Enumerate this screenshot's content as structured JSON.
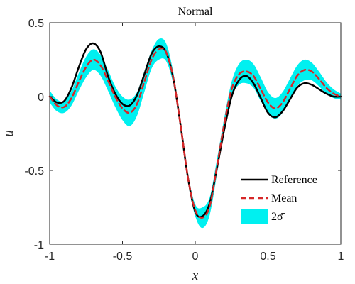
{
  "chart_data": {
    "type": "line",
    "title": "Normal",
    "xlabel": "x",
    "ylabel": "u",
    "xlim": [
      -1,
      1
    ],
    "ylim": [
      -1,
      0.5
    ],
    "xticks": [
      -1,
      -0.5,
      0,
      0.5,
      1
    ],
    "xtick_labels": [
      "-1",
      "-0.5",
      "0",
      "0.5",
      "1"
    ],
    "yticks": [
      -1,
      -0.5,
      0,
      0.5
    ],
    "ytick_labels": [
      "-1",
      "-0.5",
      "0",
      "0.5"
    ],
    "grid": false,
    "legend_position": "bottom-right",
    "x": [
      -1.0,
      -0.95,
      -0.9,
      -0.85,
      -0.8,
      -0.75,
      -0.7,
      -0.65,
      -0.6,
      -0.55,
      -0.5,
      -0.45,
      -0.4,
      -0.35,
      -0.3,
      -0.25,
      -0.2,
      -0.15,
      -0.1,
      -0.05,
      0.0,
      0.05,
      0.1,
      0.15,
      0.2,
      0.25,
      0.3,
      0.35,
      0.4,
      0.45,
      0.5,
      0.55,
      0.6,
      0.65,
      0.7,
      0.75,
      0.8,
      0.85,
      0.9,
      0.95,
      1.0
    ],
    "series": [
      {
        "name": "Reference",
        "color": "#000000",
        "style": "solid",
        "values": [
          0.0,
          -0.04,
          -0.03,
          0.06,
          0.2,
          0.32,
          0.36,
          0.3,
          0.14,
          0.02,
          -0.05,
          -0.06,
          0.01,
          0.15,
          0.29,
          0.34,
          0.3,
          0.12,
          -0.2,
          -0.55,
          -0.78,
          -0.81,
          -0.72,
          -0.48,
          -0.22,
          0.0,
          0.11,
          0.14,
          0.09,
          -0.01,
          -0.11,
          -0.14,
          -0.1,
          -0.02,
          0.06,
          0.09,
          0.08,
          0.05,
          0.02,
          0.0,
          0.0
        ]
      },
      {
        "name": "Mean",
        "color": "#d62728",
        "style": "dashed",
        "values": [
          0.0,
          -0.06,
          -0.07,
          -0.01,
          0.1,
          0.2,
          0.25,
          0.21,
          0.11,
          0.0,
          -0.08,
          -0.11,
          -0.05,
          0.1,
          0.25,
          0.32,
          0.3,
          0.12,
          -0.2,
          -0.55,
          -0.77,
          -0.82,
          -0.74,
          -0.47,
          -0.18,
          0.05,
          0.15,
          0.17,
          0.14,
          0.05,
          -0.04,
          -0.08,
          -0.04,
          0.05,
          0.14,
          0.18,
          0.17,
          0.12,
          0.06,
          0.02,
          0.0
        ]
      }
    ],
    "band": {
      "name": "2σ̄",
      "color": "#00f0f0",
      "half_width": [
        0.04,
        0.04,
        0.04,
        0.05,
        0.06,
        0.07,
        0.07,
        0.07,
        0.07,
        0.07,
        0.08,
        0.09,
        0.08,
        0.07,
        0.06,
        0.07,
        0.06,
        0.04,
        0.03,
        0.03,
        0.04,
        0.07,
        0.06,
        0.05,
        0.04,
        0.05,
        0.07,
        0.08,
        0.08,
        0.08,
        0.07,
        0.07,
        0.07,
        0.07,
        0.07,
        0.07,
        0.06,
        0.05,
        0.04,
        0.03,
        0.02
      ]
    }
  }
}
